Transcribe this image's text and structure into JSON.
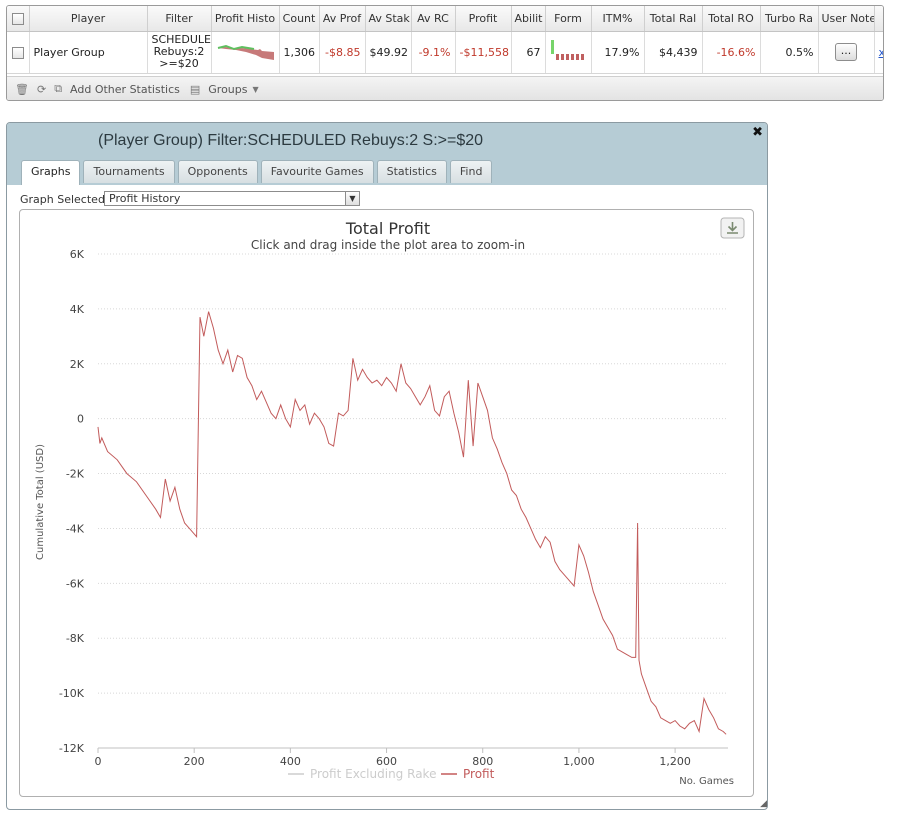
{
  "stats_table": {
    "columns": [
      "",
      "Player",
      "Filter",
      "Profit Histo",
      "Count",
      "Av Prof",
      "Av Stak",
      "Av RC",
      "Profit",
      "Abilit",
      "Form",
      "ITM%",
      "Total Ral",
      "Total RO",
      "Turbo Ra",
      "User Note",
      ""
    ],
    "row": {
      "player": "Player Group",
      "filter_lines": [
        "SCHEDULE",
        "Rebuys:2",
        ">=$20"
      ],
      "count": "1,306",
      "av_profit": "-$8.85",
      "av_stake": "$49.92",
      "av_roi": "-9.1%",
      "profit": "-$11,558",
      "ability": "67",
      "itm": "17.9%",
      "total_rake": "$4,439",
      "total_roi": "-16.6%",
      "turbo_ratio": "0.5%",
      "notes_button": "...",
      "link": "x"
    },
    "footer": {
      "add_stats": "Add Other Statistics",
      "groups": "Groups"
    },
    "colors": {
      "negative": "#c0392b",
      "form_green": "#66cc55",
      "form_red": "#c06060"
    }
  },
  "dialog": {
    "title": "(Player Group) Filter:SCHEDULED Rebuys:2 S:>=$20",
    "tabs": [
      "Graphs",
      "Tournaments",
      "Opponents",
      "Favourite Games",
      "Statistics",
      "Find"
    ],
    "active_tab": "Graphs",
    "graph_selected_label": "Graph Selected:",
    "graph_selected_value": "Profit History",
    "header_bg": "#b6ccd5"
  },
  "chart_data": {
    "type": "line",
    "title": "Total Profit",
    "subtitle": "Click and drag inside the plot area to zoom-in",
    "xlabel": "No. Games",
    "ylabel": "Cumulative Total (USD)",
    "xlim": [
      0,
      1310
    ],
    "ylim": [
      -12000,
      6000
    ],
    "x_ticks": [
      0,
      200,
      400,
      600,
      800,
      1000,
      1200
    ],
    "x_tick_labels": [
      "0",
      "200",
      "400",
      "600",
      "800",
      "1,000",
      "1,200"
    ],
    "y_ticks": [
      6000,
      4000,
      2000,
      0,
      -2000,
      -4000,
      -6000,
      -8000,
      -10000,
      -12000
    ],
    "y_tick_labels": [
      "6K",
      "4K",
      "2K",
      "0",
      "-2K",
      "-4K",
      "-6K",
      "-8K",
      "-10K",
      "-12K"
    ],
    "grid": true,
    "legend_position": "bottom-center",
    "series": [
      {
        "name": "Profit Excluding Rake",
        "color": "#cccccc",
        "visible": false,
        "x": [],
        "y": []
      },
      {
        "name": "Profit",
        "color": "#c25b5b",
        "x": [
          0,
          4,
          8,
          20,
          40,
          60,
          80,
          100,
          120,
          130,
          140,
          150,
          160,
          170,
          180,
          190,
          200,
          205,
          212,
          220,
          230,
          240,
          250,
          260,
          270,
          280,
          290,
          300,
          310,
          320,
          330,
          340,
          350,
          360,
          370,
          380,
          390,
          400,
          410,
          420,
          430,
          440,
          450,
          460,
          470,
          480,
          490,
          500,
          510,
          520,
          530,
          540,
          550,
          560,
          570,
          580,
          590,
          600,
          610,
          620,
          630,
          640,
          650,
          660,
          670,
          680,
          690,
          700,
          710,
          720,
          730,
          740,
          750,
          760,
          770,
          780,
          790,
          800,
          810,
          820,
          830,
          840,
          850,
          860,
          870,
          880,
          890,
          900,
          910,
          920,
          930,
          940,
          950,
          960,
          970,
          980,
          990,
          1000,
          1010,
          1020,
          1030,
          1040,
          1050,
          1060,
          1070,
          1080,
          1090,
          1100,
          1110,
          1118,
          1122,
          1125,
          1130,
          1140,
          1150,
          1160,
          1170,
          1180,
          1190,
          1200,
          1210,
          1220,
          1230,
          1240,
          1250,
          1260,
          1270,
          1280,
          1290,
          1300,
          1306
        ],
        "y": [
          -300,
          -900,
          -700,
          -1200,
          -1500,
          -2000,
          -2300,
          -2800,
          -3300,
          -3600,
          -2200,
          -3000,
          -2500,
          -3300,
          -3800,
          -4000,
          -4200,
          -4300,
          3700,
          3000,
          3900,
          3300,
          2500,
          2000,
          2500,
          1700,
          2300,
          2200,
          1500,
          1200,
          700,
          1000,
          600,
          200,
          0,
          500,
          0,
          -300,
          700,
          300,
          500,
          -200,
          200,
          0,
          -300,
          -900,
          -1000,
          200,
          100,
          300,
          2200,
          1400,
          1800,
          1500,
          1300,
          1400,
          1200,
          1500,
          1300,
          1000,
          2000,
          1300,
          1100,
          800,
          500,
          800,
          1200,
          300,
          100,
          800,
          1000,
          200,
          -500,
          -1400,
          1400,
          -1000,
          1300,
          800,
          300,
          -700,
          -1100,
          -1600,
          -2000,
          -2600,
          -2800,
          -3300,
          -3600,
          -4000,
          -4400,
          -4700,
          -4300,
          -4500,
          -5200,
          -5500,
          -5700,
          -5900,
          -6100,
          -4600,
          -5000,
          -5600,
          -6300,
          -6800,
          -7300,
          -7600,
          -7900,
          -8400,
          -8500,
          -8600,
          -8700,
          -8700,
          -3800,
          -8800,
          -9300,
          -9800,
          -10300,
          -10500,
          -10900,
          -11000,
          -11100,
          -11000,
          -11200,
          -11300,
          -11100,
          -11000,
          -11400,
          -10200,
          -10600,
          -10900,
          -11300,
          -11400,
          -11500
        ]
      }
    ]
  }
}
